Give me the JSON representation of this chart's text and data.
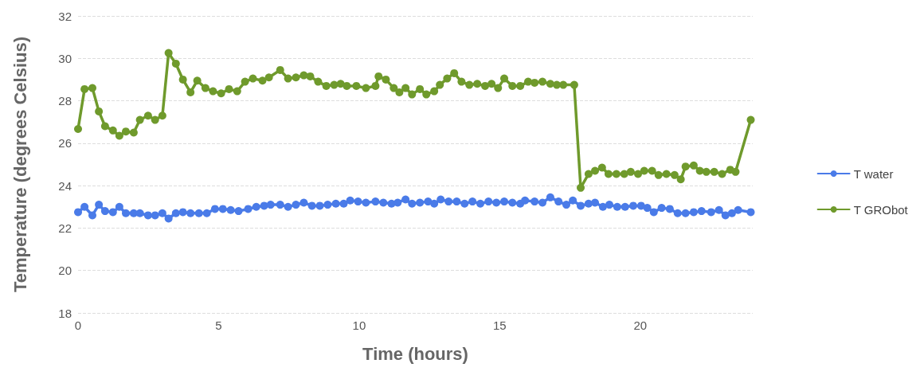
{
  "chart_data": {
    "type": "line",
    "xlabel": "Time (hours)",
    "ylabel": "Temperature (degrees Celsius)",
    "xlim": [
      0,
      24
    ],
    "xticks": [
      0,
      5,
      10,
      15,
      20
    ],
    "ylim": [
      18,
      32
    ],
    "yticks": [
      18,
      20,
      22,
      24,
      26,
      28,
      30,
      32
    ],
    "grid": "y",
    "legend": "right",
    "marker": "circle",
    "line_style": "solid",
    "series": [
      {
        "name": "T water",
        "color": "#4a7be8",
        "x": [
          0,
          0.23,
          0.51,
          0.74,
          0.96,
          1.24,
          1.47,
          1.7,
          1.98,
          2.2,
          2.49,
          2.74,
          3.0,
          3.22,
          3.48,
          3.73,
          4.0,
          4.3,
          4.58,
          4.87,
          5.15,
          5.43,
          5.71,
          6.05,
          6.34,
          6.62,
          6.85,
          7.19,
          7.47,
          7.75,
          8.03,
          8.32,
          8.6,
          8.88,
          9.17,
          9.45,
          9.68,
          9.96,
          10.24,
          10.58,
          10.86,
          11.15,
          11.37,
          11.65,
          11.88,
          12.16,
          12.45,
          12.67,
          12.9,
          13.18,
          13.47,
          13.75,
          14.03,
          14.31,
          14.6,
          14.88,
          15.16,
          15.45,
          15.73,
          15.9,
          16.24,
          16.52,
          16.8,
          17.09,
          17.37,
          17.6,
          17.88,
          18.16,
          18.39,
          18.67,
          18.9,
          19.18,
          19.46,
          19.75,
          20.03,
          20.25,
          20.48,
          20.76,
          21.05,
          21.33,
          21.61,
          21.9,
          22.18,
          22.52,
          22.8,
          23.03,
          23.26,
          23.48,
          23.93
        ],
        "values": [
          22.75,
          23.0,
          22.6,
          23.1,
          22.8,
          22.75,
          23.0,
          22.7,
          22.7,
          22.7,
          22.6,
          22.6,
          22.7,
          22.45,
          22.7,
          22.75,
          22.7,
          22.7,
          22.7,
          22.9,
          22.9,
          22.85,
          22.8,
          22.9,
          23.0,
          23.05,
          23.1,
          23.1,
          23.0,
          23.1,
          23.2,
          23.05,
          23.05,
          23.1,
          23.15,
          23.15,
          23.3,
          23.25,
          23.2,
          23.25,
          23.2,
          23.15,
          23.2,
          23.35,
          23.15,
          23.2,
          23.25,
          23.15,
          23.35,
          23.25,
          23.25,
          23.15,
          23.25,
          23.15,
          23.25,
          23.2,
          23.25,
          23.2,
          23.15,
          23.3,
          23.25,
          23.2,
          23.45,
          23.25,
          23.1,
          23.3,
          23.05,
          23.15,
          23.2,
          23.0,
          23.1,
          23.0,
          23.0,
          23.05,
          23.05,
          22.95,
          22.75,
          22.95,
          22.9,
          22.7,
          22.7,
          22.75,
          22.8,
          22.75,
          22.85,
          22.6,
          22.7,
          22.85,
          22.75
        ]
      },
      {
        "name": "T GRObot",
        "color": "#6f9a2c",
        "x": [
          0,
          0.23,
          0.51,
          0.74,
          0.96,
          1.24,
          1.47,
          1.7,
          1.98,
          2.2,
          2.49,
          2.74,
          3.0,
          3.22,
          3.48,
          3.73,
          4.0,
          4.24,
          4.53,
          4.8,
          5.09,
          5.37,
          5.66,
          5.94,
          6.22,
          6.56,
          6.79,
          7.19,
          7.47,
          7.75,
          8.03,
          8.26,
          8.54,
          8.83,
          9.11,
          9.34,
          9.56,
          9.9,
          10.24,
          10.58,
          10.69,
          10.95,
          11.23,
          11.43,
          11.65,
          11.88,
          12.16,
          12.39,
          12.67,
          12.87,
          13.13,
          13.38,
          13.64,
          13.92,
          14.2,
          14.48,
          14.71,
          14.94,
          15.16,
          15.45,
          15.73,
          16.01,
          16.24,
          16.52,
          16.8,
          17.03,
          17.26,
          17.65,
          17.88,
          18.16,
          18.39,
          18.64,
          18.87,
          19.15,
          19.43,
          19.66,
          19.92,
          20.14,
          20.42,
          20.65,
          20.93,
          21.22,
          21.44,
          21.61,
          21.9,
          22.12,
          22.35,
          22.63,
          22.91,
          23.2,
          23.39,
          23.93
        ],
        "values": [
          26.67,
          28.55,
          28.6,
          27.5,
          26.8,
          26.6,
          26.35,
          26.55,
          26.5,
          27.1,
          27.3,
          27.1,
          27.3,
          30.25,
          29.75,
          29.0,
          28.4,
          28.95,
          28.6,
          28.45,
          28.35,
          28.55,
          28.45,
          28.9,
          29.05,
          28.95,
          29.1,
          29.45,
          29.05,
          29.1,
          29.2,
          29.15,
          28.9,
          28.7,
          28.75,
          28.8,
          28.7,
          28.7,
          28.6,
          28.7,
          29.15,
          29.0,
          28.6,
          28.4,
          28.6,
          28.3,
          28.55,
          28.3,
          28.45,
          28.75,
          29.05,
          29.3,
          28.9,
          28.75,
          28.8,
          28.7,
          28.8,
          28.6,
          29.05,
          28.7,
          28.7,
          28.9,
          28.85,
          28.9,
          28.8,
          28.75,
          28.75,
          28.75,
          23.9,
          24.55,
          24.7,
          24.85,
          24.55,
          24.55,
          24.55,
          24.65,
          24.55,
          24.7,
          24.7,
          24.5,
          24.55,
          24.5,
          24.3,
          24.9,
          24.95,
          24.7,
          24.65,
          24.65,
          24.55,
          24.75,
          24.65,
          27.1
        ]
      }
    ]
  }
}
